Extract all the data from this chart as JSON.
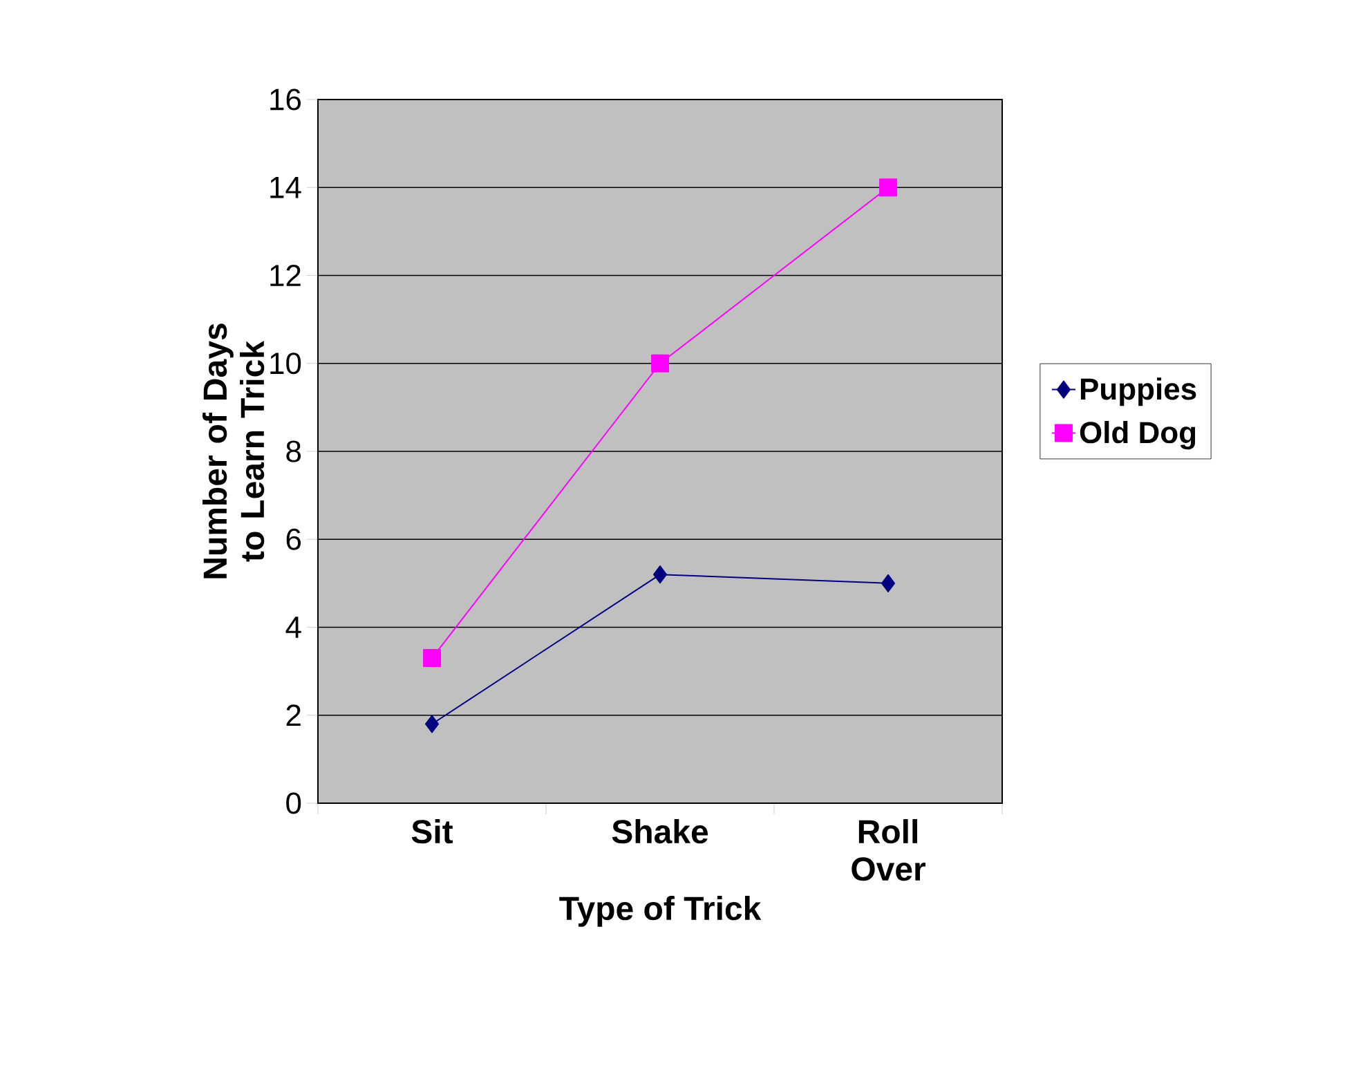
{
  "chart_data": {
    "type": "line",
    "xlabel": "Type of Trick",
    "ylabel": "Number of Days to Learn Trick",
    "categories": [
      "Sit",
      "Shake",
      "Roll Over"
    ],
    "series": [
      {
        "name": "Puppies",
        "color": "#000080",
        "marker": "diamond",
        "values": [
          1.8,
          5.2,
          5.0
        ]
      },
      {
        "name": "Old Dog",
        "color": "#ff00ff",
        "marker": "square",
        "values": [
          3.3,
          10,
          14
        ]
      }
    ],
    "ylim": [
      0,
      16
    ],
    "yticks": [
      0,
      2,
      4,
      6,
      8,
      10,
      12,
      14,
      16
    ],
    "grid": "y",
    "legend": "right"
  }
}
